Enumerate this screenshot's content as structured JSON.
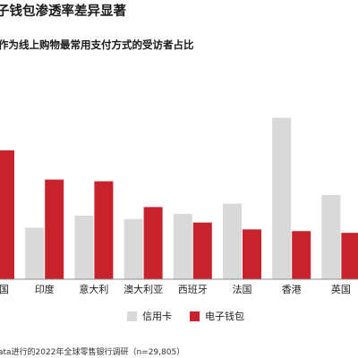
{
  "title": "子钱包渗透率差异显著",
  "subtitle": "作为线上购物最常用支付方式的受访者占比",
  "source": "ata进行的2022年全球零售银行调研（n=29,805）",
  "colors": {
    "credit_card": "#d9d9d9",
    "ewallet": "#c8232c",
    "axis": "#8c8c8c"
  },
  "chart_data": {
    "type": "bar",
    "categories": [
      "国",
      "印度",
      "意大利",
      "澳大利亚",
      "西班牙",
      "法国",
      "香港",
      "英国"
    ],
    "series": [
      {
        "name": "信用卡",
        "values": [
          null,
          30,
          37,
          35,
          38,
          44,
          94,
          49
        ]
      },
      {
        "name": "电子钱包",
        "values": [
          75,
          58,
          57,
          42,
          33,
          29,
          28,
          27
        ]
      }
    ],
    "ylim": [
      0,
      100
    ],
    "grid": false,
    "legend_position": "bottom"
  }
}
